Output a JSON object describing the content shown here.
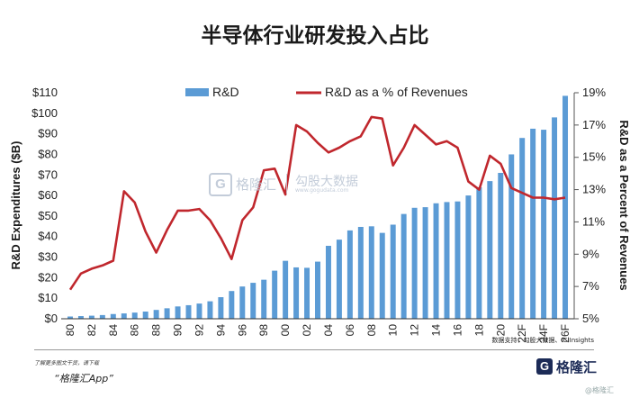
{
  "page": {
    "title": "半导体行业研发投入占比",
    "source": "数据支持：勾股大数据、IC Insights",
    "footer_note": "了解更多图文干货，请下载",
    "footer_app": "“格隆汇App”",
    "logo_glyph": "G",
    "logo_text": "格隆汇",
    "watermark_glyph": "G",
    "watermark_name": "格隆汇",
    "watermark_brand": "勾股大数据",
    "watermark_url": "www.gogudata.com",
    "corner_mark": "@格隆汇"
  },
  "chart_data": {
    "type": "bar",
    "title": "半导体行业研发投入占比",
    "categories": [
      "80",
      "81",
      "82",
      "83",
      "84",
      "85",
      "86",
      "87",
      "88",
      "89",
      "90",
      "91",
      "92",
      "93",
      "94",
      "95",
      "96",
      "97",
      "98",
      "99",
      "00",
      "01",
      "02",
      "03",
      "04",
      "05",
      "06",
      "07",
      "08",
      "09",
      "10",
      "11",
      "12",
      "13",
      "14",
      "15",
      "16",
      "17",
      "18",
      "19",
      "20",
      "21",
      "22F",
      "23",
      "24F",
      "25",
      "26F"
    ],
    "x_tick_labels": [
      "80",
      "82",
      "84",
      "86",
      "88",
      "90",
      "92",
      "94",
      "96",
      "98",
      "00",
      "02",
      "04",
      "06",
      "08",
      "10",
      "12",
      "14",
      "16",
      "18",
      "20",
      "22F",
      "24F",
      "26F"
    ],
    "ylabel": "R&D Expenditures ($B)",
    "y2label": "R&D as a Percent of Revenues",
    "ylim": [
      0,
      110
    ],
    "yticks": [
      0,
      10,
      20,
      30,
      40,
      50,
      60,
      70,
      80,
      90,
      100,
      110
    ],
    "ytick_labels": [
      "$0",
      "$10",
      "$20",
      "$30",
      "$40",
      "$50",
      "$60",
      "$70",
      "$80",
      "$90",
      "$100",
      "$110"
    ],
    "y2lim": [
      5,
      19
    ],
    "y2ticks": [
      5,
      7,
      9,
      11,
      13,
      15,
      17,
      19
    ],
    "y2tick_labels": [
      "5%",
      "7%",
      "9%",
      "11%",
      "13%",
      "15%",
      "17%",
      "19%"
    ],
    "legend_position": "top",
    "series": [
      {
        "name": "R&D",
        "type": "bar",
        "color": "#5b9bd5",
        "values": [
          1.1,
          1.3,
          1.5,
          1.8,
          2.3,
          2.6,
          3.0,
          3.5,
          4.3,
          5.1,
          6.0,
          6.6,
          7.4,
          8.5,
          10.5,
          13.5,
          15.7,
          17.5,
          19.0,
          23.4,
          28.2,
          25.0,
          24.8,
          27.8,
          35.5,
          38.5,
          43.0,
          44.7,
          45.0,
          41.8,
          45.8,
          51.0,
          54.0,
          54.3,
          56.2,
          56.8,
          57.1,
          60.0,
          64.0,
          67.0,
          71.0,
          80.0,
          88.0,
          92.5,
          92.0,
          98.0,
          108.5
        ]
      },
      {
        "name": "R&D as a % of Revenues",
        "type": "line",
        "axis": "right",
        "color": "#c0272d",
        "values": [
          6.8,
          7.8,
          8.1,
          8.3,
          8.6,
          12.9,
          12.2,
          10.4,
          9.1,
          10.5,
          11.7,
          11.7,
          11.8,
          11.1,
          10.0,
          8.7,
          11.1,
          11.9,
          14.2,
          14.3,
          12.7,
          17.0,
          16.6,
          15.9,
          15.3,
          15.6,
          16.0,
          16.3,
          17.5,
          17.4,
          14.5,
          15.6,
          17.0,
          16.4,
          15.8,
          16.0,
          15.6,
          13.5,
          13.0,
          15.1,
          14.6,
          13.1,
          12.8,
          12.5,
          12.5,
          12.4,
          12.5
        ]
      }
    ]
  }
}
